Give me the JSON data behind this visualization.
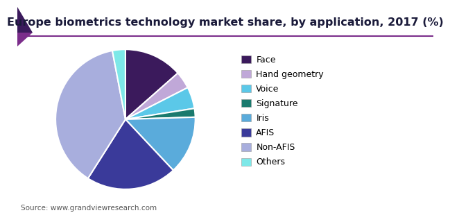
{
  "title": "Europe biometrics technology market share, by application, 2017 (%)",
  "source": "Source: www.grandviewresearch.com",
  "labels": [
    "Face",
    "Hand geometry",
    "Voice",
    "Signature",
    "Iris",
    "AFIS",
    "Non-AFIS",
    "Others"
  ],
  "values": [
    13.5,
    4.0,
    5.0,
    2.0,
    13.5,
    21.0,
    38.0,
    3.0
  ],
  "colors": [
    "#3b1a5c",
    "#c0a8d8",
    "#5bc8e8",
    "#1a7a6e",
    "#5aabdb",
    "#3a3a9a",
    "#a8aedd",
    "#7de8e8"
  ],
  "startangle": 90,
  "background_color": "#ffffff",
  "title_fontsize": 11.5,
  "legend_fontsize": 9,
  "source_fontsize": 7.5,
  "wedge_edge_color": "#ffffff",
  "wedge_linewidth": 1.5,
  "header_line_color": "#7b2d8b",
  "header_triangle_color1": "#7b2d8b",
  "header_triangle_color2": "#3b1a5c"
}
